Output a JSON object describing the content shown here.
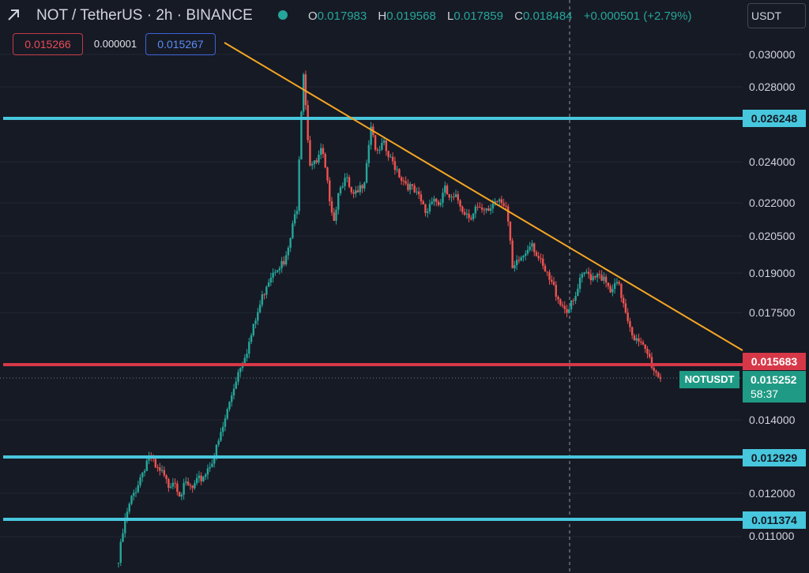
{
  "header": {
    "symbol_title": "NOT / TetherUS · 2h · BINANCE",
    "ohlc": {
      "open_key": "O",
      "open": "0.017983",
      "high_key": "H",
      "high": "0.019568",
      "low_key": "L",
      "low": "0.017859",
      "close_key": "C",
      "close": "0.018484",
      "change": "+0.000501 (+2.79%)"
    },
    "currency": "USDT",
    "icons": {
      "collapse": "collapse-arrow-icon",
      "status": "market-open-dot-icon"
    }
  },
  "trade": {
    "sell_price": "0.015266",
    "spread": "0.000001",
    "buy_price": "0.015267"
  },
  "price_axis": {
    "ticks": [
      "0.030000",
      "0.028000",
      "0.024000",
      "0.022000",
      "0.020500",
      "0.019000",
      "0.017500",
      "0.014000",
      "0.012000",
      "0.011000"
    ]
  },
  "levels": {
    "resistance_high": "0.026248",
    "support_red": "0.015683",
    "support_mid": "0.012929",
    "support_low": "0.011374"
  },
  "last_price": {
    "symbol": "NOTUSDT",
    "price": "0.015252",
    "countdown": "58:37"
  },
  "colors": {
    "background": "#161a25",
    "up": "#26a69a",
    "down": "#ef5350",
    "horizontal_cyan": "#47c7dd",
    "horizontal_red": "#d63848",
    "trendline": "#f5a623"
  },
  "chart_data": {
    "type": "candlestick",
    "symbol": "NOTUSDT",
    "interval": "2h",
    "y_ticks": [
      0.03,
      0.028,
      0.024,
      0.022,
      0.0205,
      0.019,
      0.0175,
      0.014,
      0.012,
      0.011
    ],
    "horizontal_lines": [
      0.026248,
      0.015683,
      0.012929,
      0.011374
    ],
    "trendline": {
      "from": 0.03,
      "to": 0.01585
    },
    "last_price": 0.015252,
    "close_path": [
      0.0105,
      0.0113,
      0.0118,
      0.0122,
      0.0126,
      0.013,
      0.0126,
      0.0125,
      0.0122,
      0.0124,
      0.012,
      0.0122,
      0.0121,
      0.0123,
      0.0125,
      0.0128,
      0.0132,
      0.0138,
      0.0145,
      0.0152,
      0.0158,
      0.0163,
      0.017,
      0.0178,
      0.0186,
      0.0191,
      0.0194,
      0.0193,
      0.0205,
      0.0219,
      0.0292,
      0.024,
      0.0238,
      0.0246,
      0.0227,
      0.0213,
      0.023,
      0.0231,
      0.0222,
      0.0225,
      0.0233,
      0.026,
      0.0243,
      0.0249,
      0.0241,
      0.0238,
      0.0232,
      0.0229,
      0.0225,
      0.0221,
      0.0215,
      0.0224,
      0.0219,
      0.0226,
      0.0221,
      0.0222,
      0.0217,
      0.0214,
      0.0218,
      0.0215,
      0.0216,
      0.0221,
      0.0223,
      0.0218,
      0.019,
      0.0195,
      0.0198,
      0.0204,
      0.0197,
      0.0191,
      0.0187,
      0.0183,
      0.0178,
      0.0176,
      0.0179,
      0.0187,
      0.019,
      0.0189,
      0.0191,
      0.0186,
      0.0182,
      0.0186,
      0.0179,
      0.0171,
      0.0165,
      0.0163,
      0.016,
      0.0155,
      0.0153
    ]
  }
}
